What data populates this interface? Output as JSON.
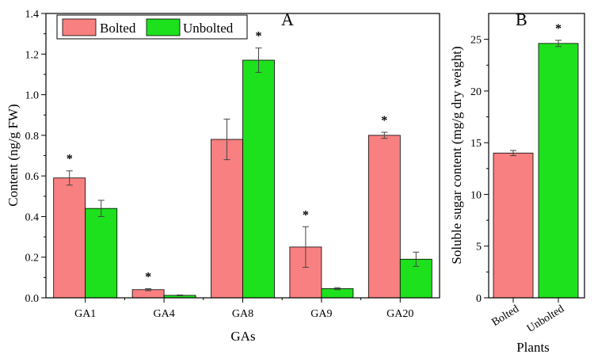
{
  "colors": {
    "bolted": "#f98080",
    "unbolted": "#1ee11e",
    "error_bar": "#444444",
    "axis": "#000000"
  },
  "chart_data": [
    {
      "panel": "A",
      "type": "bar",
      "title": "",
      "xlabel": "GAs",
      "ylabel": "Content (ng/g FW)",
      "ylim": [
        0,
        1.4
      ],
      "yticks": [
        "0.0",
        "0.2",
        "0.4",
        "0.6",
        "0.8",
        "1.0",
        "1.2",
        "1.4"
      ],
      "categories": [
        "GA1",
        "GA4",
        "GA8",
        "GA9",
        "GA20"
      ],
      "legend_position": "top-left",
      "series": [
        {
          "name": "Bolted",
          "values": [
            0.59,
            0.04,
            0.78,
            0.25,
            0.8
          ],
          "errors": [
            0.035,
            0.005,
            0.1,
            0.1,
            0.015
          ]
        },
        {
          "name": "Unbolted",
          "values": [
            0.44,
            0.012,
            1.17,
            0.045,
            0.19
          ],
          "errors": [
            0.04,
            0.002,
            0.06,
            0.005,
            0.035
          ]
        }
      ],
      "annotations": [
        {
          "category": "GA1",
          "series": "Bolted",
          "text": "*"
        },
        {
          "category": "GA4",
          "series": "Bolted",
          "text": "*"
        },
        {
          "category": "GA8",
          "series": "Unbolted",
          "text": "*"
        },
        {
          "category": "GA9",
          "series": "Bolted",
          "text": "*"
        },
        {
          "category": "GA20",
          "series": "Bolted",
          "text": "*"
        }
      ]
    },
    {
      "panel": "B",
      "type": "bar",
      "title": "",
      "xlabel": "Plants",
      "ylabel": "Soluble sugar content (mg/g dry weight)",
      "ylim": [
        0,
        27.5
      ],
      "yticks": [
        "0",
        "5",
        "10",
        "15",
        "20",
        "25"
      ],
      "categories": [
        "Bolted",
        "Unbolted"
      ],
      "series": [
        {
          "name": "Plants",
          "values": [
            14.0,
            24.6
          ],
          "errors": [
            0.25,
            0.3
          ]
        }
      ],
      "annotations": [
        {
          "category": "Unbolted",
          "text": "*"
        }
      ]
    }
  ]
}
